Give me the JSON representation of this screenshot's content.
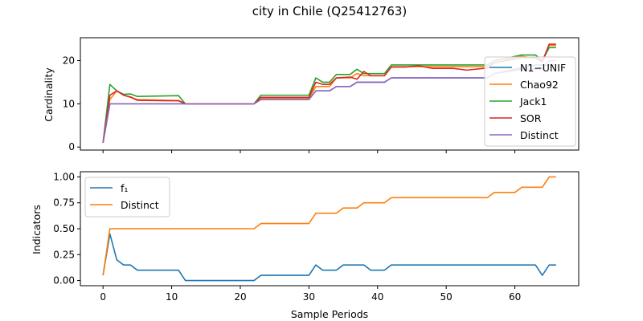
{
  "chart_data": {
    "type": "line",
    "title": "city in Chile (Q25412763)",
    "xlabel": "Sample Periods",
    "xlim": [
      -3.3,
      69.3
    ],
    "xticks": [
      0,
      10,
      20,
      30,
      40,
      50,
      60
    ],
    "panels": [
      {
        "ylabel": "Cardinality",
        "ylim": [
          -0.7,
          25.3
        ],
        "yticks": [
          0,
          10,
          20
        ],
        "show_xtick_labels": false,
        "legend_position": "right",
        "series": [
          {
            "name": "N1−UNIF",
            "color": "#1f77b4",
            "x": [
              0,
              1,
              2,
              3,
              4,
              5,
              10,
              11,
              12,
              22,
              23,
              30,
              31,
              33,
              34,
              36,
              37,
              38,
              39,
              41,
              42,
              56,
              57,
              63,
              64,
              65,
              66
            ],
            "y": [
              1,
              10,
              10,
              10,
              10,
              10,
              10,
              10,
              10,
              10,
              11,
              11,
              13,
              13,
              14,
              14,
              15,
              15,
              15,
              15,
              16,
              16,
              17,
              19,
              19,
              19,
              19
            ]
          },
          {
            "name": "Chao92",
            "color": "#ff7f0e",
            "x": [
              0,
              1,
              2,
              3,
              4,
              5,
              10,
              11,
              12,
              22,
              23,
              30,
              31,
              33,
              34,
              36,
              37,
              38,
              39,
              41,
              42,
              56,
              57,
              61,
              63,
              64,
              65,
              66
            ],
            "y": [
              1,
              11,
              13,
              12,
              11.5,
              11,
              10.8,
              10.8,
              10,
              10,
              11.3,
              11.3,
              14,
              14,
              16,
              16,
              17,
              16.5,
              16.5,
              16.5,
              18.6,
              18.6,
              20,
              21,
              20.5,
              20,
              23.5,
              23.5
            ]
          },
          {
            "name": "Jack1",
            "color": "#2ca02c",
            "x": [
              0,
              1,
              2,
              3,
              4,
              5,
              11,
              12,
              22,
              23,
              30,
              31,
              32,
              33,
              34,
              36,
              37,
              38,
              39,
              41,
              42,
              56,
              57,
              61,
              63,
              64,
              65,
              66
            ],
            "y": [
              1,
              14.5,
              13,
              12.2,
              12.3,
              11.7,
              11.9,
              10,
              10,
              12,
              12,
              16,
              15,
              15,
              16.8,
              16.8,
              18,
              17,
              17,
              17,
              19,
              19,
              20,
              21.3,
              21.3,
              20,
              23,
              23
            ]
          },
          {
            "name": "SOR",
            "color": "#d62728",
            "x": [
              0,
              1,
              2,
              3,
              4,
              5,
              10,
              11,
              12,
              22,
              23,
              30,
              31,
              32,
              33,
              34,
              36,
              37,
              38,
              39,
              41,
              42,
              44,
              46,
              48,
              51,
              53,
              56,
              57,
              61,
              63,
              64,
              65,
              66
            ],
            "y": [
              1,
              12,
              13,
              12,
              11.6,
              10.8,
              10.7,
              10.7,
              10,
              10,
              11.5,
              11.5,
              15,
              14.5,
              14.5,
              16,
              16.2,
              15.7,
              17.5,
              16.5,
              16.5,
              18.5,
              18.5,
              18.8,
              18.2,
              18.2,
              17.8,
              18.3,
              19.5,
              20.7,
              20.7,
              19.7,
              23.8,
              23.8
            ]
          },
          {
            "name": "Distinct",
            "color": "#9467bd",
            "x": [
              0,
              1,
              2,
              3,
              4,
              5,
              10,
              11,
              12,
              22,
              23,
              30,
              31,
              33,
              34,
              36,
              37,
              38,
              39,
              41,
              42,
              56,
              57,
              61,
              63,
              64,
              65,
              66
            ],
            "y": [
              1,
              10,
              10,
              10,
              10,
              10,
              10,
              10,
              10,
              10,
              11,
              11,
              13,
              13,
              14,
              14,
              15,
              15,
              15,
              15,
              16,
              16,
              17,
              18,
              18,
              18,
              20,
              20
            ]
          }
        ]
      },
      {
        "ylabel": "Indicators",
        "ylim": [
          -0.05,
          1.05
        ],
        "yticks": [
          "0.00",
          "0.25",
          "0.50",
          "0.75",
          "1.00"
        ],
        "show_xtick_labels": true,
        "legend_position": "upper left",
        "series": [
          {
            "name": "f₁",
            "color": "#1f77b4",
            "x": [
              0,
              1,
              2,
              3,
              4,
              5,
              11,
              12,
              22,
              23,
              30,
              31,
              32,
              34,
              35,
              38,
              39,
              41,
              42,
              63,
              64,
              65,
              66
            ],
            "y": [
              0.05,
              0.45,
              0.2,
              0.15,
              0.15,
              0.1,
              0.1,
              0,
              0,
              0.05,
              0.05,
              0.15,
              0.1,
              0.1,
              0.15,
              0.15,
              0.1,
              0.1,
              0.15,
              0.15,
              0.05,
              0.15,
              0.15
            ]
          },
          {
            "name": "Distinct",
            "color": "#ff7f0e",
            "x": [
              0,
              1,
              22,
              23,
              30,
              31,
              34,
              35,
              37,
              38,
              41,
              42,
              56,
              57,
              60,
              61,
              63,
              64,
              65,
              66
            ],
            "y": [
              0.05,
              0.5,
              0.5,
              0.55,
              0.55,
              0.65,
              0.65,
              0.7,
              0.7,
              0.75,
              0.75,
              0.8,
              0.8,
              0.85,
              0.85,
              0.9,
              0.9,
              0.9,
              1,
              1
            ]
          }
        ]
      }
    ]
  }
}
